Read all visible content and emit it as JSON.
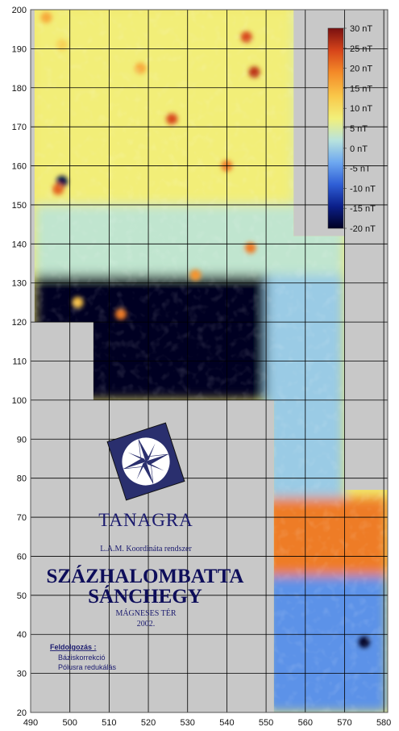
{
  "chart_data": {
    "type": "heatmap",
    "title": "SZÁZHALOMBATTA SÁNCHEGY",
    "subtitle": "MÁGNESES TÉR",
    "xlim": [
      490,
      581
    ],
    "ylim": [
      20,
      200
    ],
    "x_ticks": [
      490,
      500,
      510,
      520,
      530,
      540,
      550,
      560,
      570,
      580
    ],
    "y_ticks": [
      20,
      30,
      40,
      50,
      60,
      70,
      80,
      90,
      100,
      110,
      120,
      130,
      140,
      150,
      160,
      170,
      180,
      190,
      200
    ],
    "grid": true,
    "colorbar": {
      "placement": "top-right",
      "min": -20,
      "max": 30,
      "unit": "nT",
      "labels": [
        "30 nT",
        "25 nT",
        "20 nT",
        "15 nT",
        "10 nT",
        "5 nT",
        "0 nT",
        "-5 nT",
        "-10 nT",
        "-15 nT",
        "-20 nT"
      ],
      "colors": [
        "#000022",
        "#0b1f8a",
        "#2f5fd6",
        "#6ea8f0",
        "#b8e3dd",
        "#f2f07a",
        "#f9c84a",
        "#f48a28",
        "#d6441a",
        "#7a1010"
      ]
    },
    "zones": [
      {
        "name": "north-positive",
        "x": [
          491,
          557
        ],
        "y": [
          150,
          200
        ],
        "value_nT": 8
      },
      {
        "name": "northeast-moderate",
        "x": [
          557,
          571
        ],
        "y": [
          142,
          200
        ],
        "value_nT": 5
      },
      {
        "name": "central-mixed",
        "x": [
          491,
          570
        ],
        "y": [
          130,
          150
        ],
        "value_nT": 3
      },
      {
        "name": "negative-band",
        "x": [
          491,
          562
        ],
        "y": [
          100,
          132
        ],
        "value_nT": -20
      },
      {
        "name": "east-strip-low",
        "x": [
          550,
          570
        ],
        "y": [
          75,
          132
        ],
        "value_nT": 0
      },
      {
        "name": "southeast-high",
        "x": [
          550,
          581
        ],
        "y": [
          55,
          75
        ],
        "value_nT": 20
      },
      {
        "name": "south-low",
        "x": [
          550,
          581
        ],
        "y": [
          20,
          55
        ],
        "value_nT": -5
      }
    ],
    "anomalies": [
      {
        "x": 494,
        "y": 198,
        "value_nT": 16
      },
      {
        "x": 498,
        "y": 191,
        "value_nT": 12
      },
      {
        "x": 545,
        "y": 193,
        "value_nT": 24
      },
      {
        "x": 547,
        "y": 184,
        "value_nT": 26
      },
      {
        "x": 526,
        "y": 172,
        "value_nT": 24
      },
      {
        "x": 540,
        "y": 160,
        "value_nT": 20
      },
      {
        "x": 518,
        "y": 185,
        "value_nT": 16
      },
      {
        "x": 546,
        "y": 139,
        "value_nT": 20
      },
      {
        "x": 532,
        "y": 132,
        "value_nT": 18
      },
      {
        "x": 498,
        "y": 156,
        "value_nT": -18
      },
      {
        "x": 497,
        "y": 154,
        "value_nT": 22
      },
      {
        "x": 502,
        "y": 125,
        "value_nT": 14
      },
      {
        "x": 513,
        "y": 122,
        "value_nT": 20
      },
      {
        "x": 575,
        "y": 38,
        "value_nT": -20
      }
    ]
  },
  "colorbar_labels": [
    "30 nT",
    "25 nT",
    "20 nT",
    "15 nT",
    "10 nT",
    "5 nT",
    "0 nT",
    "-5 nT",
    "-10 nT",
    "-15 nT",
    "-20 nT"
  ],
  "title_block": {
    "logo_icon": "compass-rose-icon",
    "company": "TANAGRA",
    "coordinate_system": "L.A.M. Koordináta rendszer",
    "site_line1": "SZÁZHALOMBATTA",
    "site_line2": "SÁNCHEGY",
    "map_type": "MÁGNESES TÉR",
    "year": "2002.",
    "processing_heading": "Feldolgozás :",
    "processing_steps": [
      "Báziskorrekció",
      "Pólusra redukálás"
    ]
  }
}
